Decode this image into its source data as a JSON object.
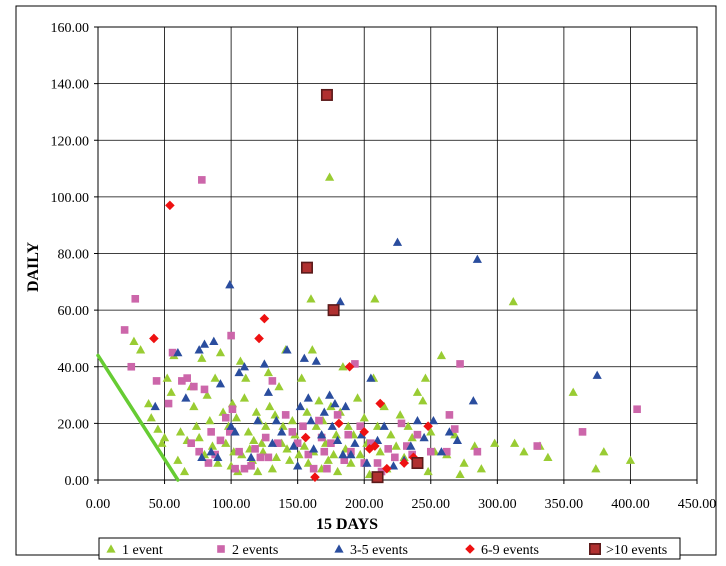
{
  "chart_data": {
    "type": "scatter",
    "title": "",
    "xlabel": "15 DAYS",
    "ylabel": "DAILY",
    "xlim": [
      0,
      450
    ],
    "ylim": [
      0,
      160
    ],
    "x_ticks": [
      "0.00",
      "50.00",
      "100.00",
      "150.00",
      "200.00",
      "250.00",
      "300.00",
      "350.00",
      "400.00",
      "450.00"
    ],
    "y_ticks": [
      "0.00",
      "20.00",
      "40.00",
      "60.00",
      "80.00",
      "100.00",
      "120.00",
      "140.00",
      "160.00"
    ],
    "grid": "vertical and horizontal",
    "legend_position": "bottom",
    "trendline": {
      "color": "#66cc33",
      "points": [
        [
          0,
          44
        ],
        [
          60,
          0
        ]
      ]
    },
    "series": [
      {
        "name": "1 event",
        "marker": "triangle",
        "color": "#99cc33",
        "points": [
          [
            27,
            49
          ],
          [
            32,
            46
          ],
          [
            38,
            27
          ],
          [
            40,
            22
          ],
          [
            45,
            18
          ],
          [
            48,
            13
          ],
          [
            50,
            15
          ],
          [
            52,
            36
          ],
          [
            55,
            31
          ],
          [
            57,
            44
          ],
          [
            60,
            7
          ],
          [
            62,
            17
          ],
          [
            65,
            3
          ],
          [
            67,
            14
          ],
          [
            70,
            33
          ],
          [
            72,
            26
          ],
          [
            74,
            19
          ],
          [
            76,
            15
          ],
          [
            78,
            43
          ],
          [
            80,
            9
          ],
          [
            82,
            30
          ],
          [
            84,
            21
          ],
          [
            86,
            12
          ],
          [
            88,
            36
          ],
          [
            90,
            6
          ],
          [
            92,
            45
          ],
          [
            94,
            24
          ],
          [
            96,
            13
          ],
          [
            98,
            19
          ],
          [
            100,
            5
          ],
          [
            101,
            27
          ],
          [
            102,
            10
          ],
          [
            104,
            22
          ],
          [
            105,
            3
          ],
          [
            107,
            42
          ],
          [
            108,
            9
          ],
          [
            110,
            29
          ],
          [
            111,
            36
          ],
          [
            113,
            17
          ],
          [
            114,
            11
          ],
          [
            116,
            7
          ],
          [
            117,
            14
          ],
          [
            119,
            24
          ],
          [
            120,
            3
          ],
          [
            121,
            21
          ],
          [
            123,
            13
          ],
          [
            124,
            10
          ],
          [
            126,
            19
          ],
          [
            128,
            38
          ],
          [
            129,
            26
          ],
          [
            131,
            4
          ],
          [
            133,
            23
          ],
          [
            134,
            8
          ],
          [
            136,
            33
          ],
          [
            138,
            13
          ],
          [
            139,
            19
          ],
          [
            141,
            46
          ],
          [
            142,
            11
          ],
          [
            144,
            7
          ],
          [
            146,
            21
          ],
          [
            148,
            16
          ],
          [
            150,
            5
          ],
          [
            151,
            9
          ],
          [
            153,
            36
          ],
          [
            155,
            12
          ],
          [
            157,
            24
          ],
          [
            158,
            6
          ],
          [
            160,
            64
          ],
          [
            161,
            46
          ],
          [
            162,
            10
          ],
          [
            164,
            19
          ],
          [
            166,
            28
          ],
          [
            168,
            4
          ],
          [
            169,
            21
          ],
          [
            171,
            13
          ],
          [
            173,
            7
          ],
          [
            174,
            107
          ],
          [
            175,
            26
          ],
          [
            177,
            9
          ],
          [
            179,
            16
          ],
          [
            180,
            3
          ],
          [
            182,
            24
          ],
          [
            184,
            40
          ],
          [
            186,
            11
          ],
          [
            188,
            19
          ],
          [
            190,
            6
          ],
          [
            192,
            16
          ],
          [
            195,
            29
          ],
          [
            197,
            9
          ],
          [
            200,
            22
          ],
          [
            202,
            13
          ],
          [
            204,
            2
          ],
          [
            207,
            36
          ],
          [
            208,
            64
          ],
          [
            210,
            19
          ],
          [
            212,
            10
          ],
          [
            215,
            26
          ],
          [
            217,
            4
          ],
          [
            220,
            16
          ],
          [
            224,
            12
          ],
          [
            227,
            23
          ],
          [
            230,
            8
          ],
          [
            233,
            19
          ],
          [
            236,
            15
          ],
          [
            240,
            31
          ],
          [
            244,
            28
          ],
          [
            246,
            36
          ],
          [
            248,
            3
          ],
          [
            250,
            17
          ],
          [
            253,
            10
          ],
          [
            258,
            44
          ],
          [
            262,
            9
          ],
          [
            268,
            16
          ],
          [
            272,
            2
          ],
          [
            275,
            6
          ],
          [
            283,
            12
          ],
          [
            288,
            4
          ],
          [
            298,
            13
          ],
          [
            312,
            63
          ],
          [
            313,
            13
          ],
          [
            320,
            10
          ],
          [
            332,
            12
          ],
          [
            338,
            8
          ],
          [
            357,
            31
          ],
          [
            374,
            4
          ],
          [
            380,
            10
          ],
          [
            400,
            7
          ]
        ]
      },
      {
        "name": "2 events",
        "marker": "square",
        "color": "#cc66aa",
        "points": [
          [
            20,
            53
          ],
          [
            25,
            40
          ],
          [
            28,
            64
          ],
          [
            44,
            35
          ],
          [
            53,
            27
          ],
          [
            56,
            45
          ],
          [
            63,
            35
          ],
          [
            67,
            36
          ],
          [
            70,
            13
          ],
          [
            72,
            33
          ],
          [
            76,
            10
          ],
          [
            78,
            106
          ],
          [
            80,
            32
          ],
          [
            83,
            6
          ],
          [
            85,
            17
          ],
          [
            88,
            9
          ],
          [
            92,
            14
          ],
          [
            96,
            22
          ],
          [
            99,
            17
          ],
          [
            100,
            51
          ],
          [
            101,
            25
          ],
          [
            103,
            4
          ],
          [
            106,
            10
          ],
          [
            110,
            4
          ],
          [
            115,
            5
          ],
          [
            118,
            11
          ],
          [
            122,
            8
          ],
          [
            126,
            15
          ],
          [
            128,
            8
          ],
          [
            131,
            35
          ],
          [
            135,
            13
          ],
          [
            141,
            23
          ],
          [
            146,
            17
          ],
          [
            150,
            13
          ],
          [
            154,
            19
          ],
          [
            158,
            9
          ],
          [
            162,
            4
          ],
          [
            166,
            21
          ],
          [
            168,
            15
          ],
          [
            170,
            10
          ],
          [
            172,
            4
          ],
          [
            175,
            13
          ],
          [
            180,
            23
          ],
          [
            185,
            7
          ],
          [
            188,
            16
          ],
          [
            190,
            10
          ],
          [
            193,
            41
          ],
          [
            197,
            19
          ],
          [
            200,
            6
          ],
          [
            205,
            13
          ],
          [
            210,
            6
          ],
          [
            213,
            3
          ],
          [
            218,
            11
          ],
          [
            223,
            8
          ],
          [
            228,
            20
          ],
          [
            232,
            12
          ],
          [
            236,
            9
          ],
          [
            240,
            16
          ],
          [
            250,
            10
          ],
          [
            262,
            10
          ],
          [
            264,
            23
          ],
          [
            268,
            18
          ],
          [
            272,
            41
          ],
          [
            285,
            10
          ],
          [
            330,
            12
          ],
          [
            364,
            17
          ],
          [
            405,
            25
          ]
        ]
      },
      {
        "name": "3-5 events",
        "marker": "triangle",
        "color": "#2a4d9e",
        "points": [
          [
            43,
            26
          ],
          [
            60,
            45
          ],
          [
            66,
            29
          ],
          [
            76,
            46
          ],
          [
            78,
            8
          ],
          [
            80,
            48
          ],
          [
            85,
            10
          ],
          [
            87,
            49
          ],
          [
            90,
            8
          ],
          [
            92,
            34
          ],
          [
            99,
            69
          ],
          [
            100,
            19
          ],
          [
            103,
            17
          ],
          [
            106,
            38
          ],
          [
            110,
            40
          ],
          [
            115,
            8
          ],
          [
            120,
            21
          ],
          [
            125,
            41
          ],
          [
            128,
            31
          ],
          [
            131,
            13
          ],
          [
            134,
            21
          ],
          [
            138,
            17
          ],
          [
            142,
            46
          ],
          [
            147,
            12
          ],
          [
            150,
            5
          ],
          [
            152,
            26
          ],
          [
            155,
            43
          ],
          [
            158,
            29
          ],
          [
            160,
            21
          ],
          [
            162,
            11
          ],
          [
            164,
            42
          ],
          [
            168,
            16
          ],
          [
            170,
            24
          ],
          [
            174,
            30
          ],
          [
            176,
            19
          ],
          [
            178,
            27
          ],
          [
            180,
            14
          ],
          [
            182,
            63
          ],
          [
            184,
            9
          ],
          [
            186,
            26
          ],
          [
            190,
            9
          ],
          [
            193,
            13
          ],
          [
            198,
            16
          ],
          [
            202,
            6
          ],
          [
            205,
            36
          ],
          [
            210,
            14
          ],
          [
            215,
            19
          ],
          [
            222,
            5
          ],
          [
            225,
            84
          ],
          [
            230,
            7
          ],
          [
            235,
            12
          ],
          [
            240,
            21
          ],
          [
            245,
            15
          ],
          [
            252,
            21
          ],
          [
            258,
            10
          ],
          [
            264,
            17
          ],
          [
            270,
            14
          ],
          [
            282,
            28
          ],
          [
            285,
            78
          ],
          [
            375,
            37
          ]
        ]
      },
      {
        "name": "6-9 events",
        "marker": "diamond",
        "color": "#ee1111",
        "points": [
          [
            42,
            50
          ],
          [
            54,
            97
          ],
          [
            121,
            50
          ],
          [
            125,
            57
          ],
          [
            156,
            15
          ],
          [
            163,
            1
          ],
          [
            181,
            20
          ],
          [
            189,
            40
          ],
          [
            200,
            17
          ],
          [
            204,
            11
          ],
          [
            208,
            12
          ],
          [
            212,
            27
          ],
          [
            248,
            19
          ],
          [
            237,
            8
          ],
          [
            217,
            4
          ],
          [
            230,
            6
          ]
        ]
      },
      {
        "name": ">10 events",
        "marker": "square-large",
        "color": "#b03030",
        "points": [
          [
            172,
            136
          ],
          [
            157,
            75
          ],
          [
            177,
            60
          ],
          [
            210,
            1
          ],
          [
            240,
            6
          ]
        ]
      }
    ]
  }
}
